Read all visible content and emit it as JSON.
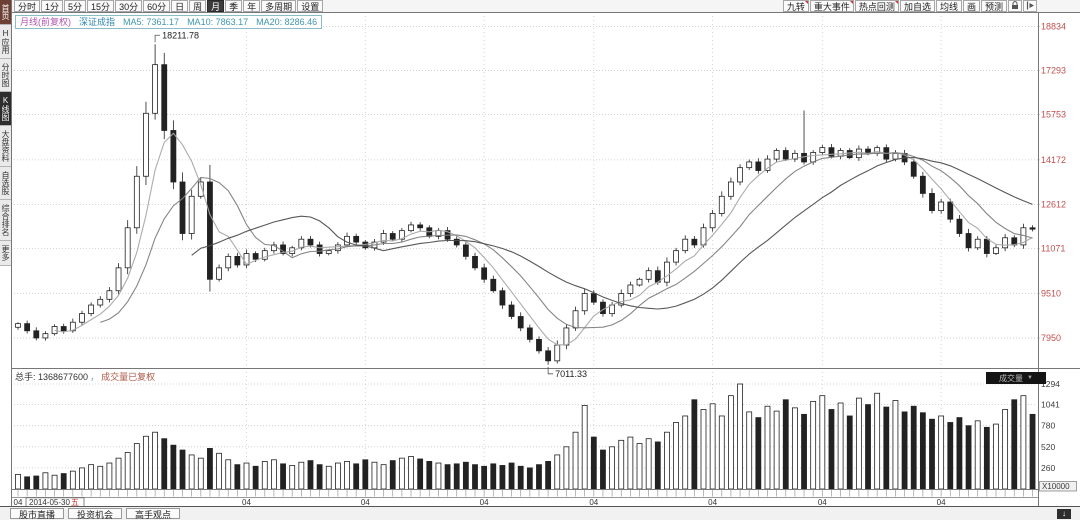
{
  "toolbar": {
    "periods": [
      {
        "label": "分时"
      },
      {
        "label": "1分"
      },
      {
        "label": "5分"
      },
      {
        "label": "15分"
      },
      {
        "label": "30分"
      },
      {
        "label": "60分"
      },
      {
        "label": "日"
      },
      {
        "label": "周"
      },
      {
        "label": "月"
      },
      {
        "label": "季"
      },
      {
        "label": "年"
      },
      {
        "label": "多周期"
      },
      {
        "label": "设置"
      }
    ],
    "right_buttons": [
      {
        "label": "九转"
      },
      {
        "label": "重大事件"
      },
      {
        "label": "热点回测"
      },
      {
        "label": "加自选"
      },
      {
        "label": "均线"
      },
      {
        "label": "画"
      },
      {
        "label": "预测"
      }
    ]
  },
  "sidebar": {
    "items": [
      {
        "label": "首页"
      },
      {
        "label": "H应用"
      },
      {
        "label": "分时图"
      },
      {
        "label": "K线图"
      },
      {
        "label": "大盘资料"
      },
      {
        "label": "自选股"
      },
      {
        "label": "综合排名"
      },
      {
        "label": "更多"
      }
    ]
  },
  "chart_header": {
    "period": "月线(前复权)",
    "symbol": "深证成指",
    "ma5": "MA5: 7361.17",
    "ma10": "MA10: 7863.17",
    "ma20": "MA20: 8286.46"
  },
  "volume_header": {
    "total": "总手: 1368677600",
    "separator": "，",
    "adjusted": "成交量已复权",
    "selector": "成交量"
  },
  "x_axis": {
    "year_label": "04",
    "date_box_date": "2014-05-30",
    "date_box_day": "五"
  },
  "bottom_tabs": [
    {
      "label": "股市直播"
    },
    {
      "label": "投资机会"
    },
    {
      "label": "高手观点"
    }
  ],
  "colors": {
    "up_fill": "#ffffff",
    "down_fill": "#222222",
    "outline": "#222222",
    "ma5": "#a8a8a8",
    "ma10": "#7f7f7f",
    "ma20": "#4f4f4f",
    "grid": "#c9c9c9",
    "axis_label": "#c05050",
    "vol_label": "#3c3c3c",
    "date_label": "#333333",
    "day_red": "#c23a2e"
  },
  "chart_data": {
    "type": "candlestick+volume",
    "title": "深证成指 月线(前复权)",
    "y_ticks": [
      18834,
      17293,
      15753,
      14172,
      12612,
      11071,
      9510,
      7950
    ],
    "price_range": [
      6900,
      19200
    ],
    "volume_ticks": [
      1294,
      1041,
      780,
      520,
      260
    ],
    "volume_unit": "X10000",
    "year_tick_indices": [
      0,
      25,
      38,
      51,
      63,
      76,
      88,
      101
    ],
    "closes": [
      8450,
      8200,
      7950,
      8100,
      8350,
      8200,
      8500,
      8800,
      9100,
      9300,
      9600,
      10400,
      11800,
      13600,
      15800,
      17500,
      15200,
      13400,
      11600,
      12900,
      13400,
      10000,
      10400,
      10800,
      10500,
      10900,
      10700,
      11000,
      11200,
      10900,
      11100,
      11400,
      11200,
      10900,
      11000,
      11200,
      11500,
      11300,
      11100,
      11300,
      11600,
      11400,
      11700,
      11900,
      11800,
      11500,
      11700,
      11400,
      11200,
      10800,
      10400,
      10000,
      9600,
      9100,
      8700,
      8300,
      7900,
      7500,
      7150,
      7700,
      8300,
      8900,
      9500,
      9200,
      8800,
      9100,
      9500,
      9800,
      10000,
      10300,
      9900,
      10600,
      11000,
      11400,
      11200,
      11800,
      12300,
      12900,
      13400,
      13900,
      14100,
      13800,
      14200,
      14500,
      14200,
      14400,
      14100,
      14430,
      14600,
      14300,
      14500,
      14250,
      14550,
      14400,
      14600,
      14200,
      14400,
      14100,
      13600,
      13000,
      12400,
      12700,
      12100,
      11600,
      11100,
      11400,
      10900,
      11100,
      11450,
      11200,
      11800,
      11750
    ],
    "volumes": [
      180,
      150,
      160,
      200,
      170,
      190,
      220,
      260,
      300,
      280,
      320,
      380,
      450,
      560,
      650,
      700,
      620,
      540,
      480,
      420,
      380,
      500,
      440,
      360,
      300,
      320,
      280,
      340,
      360,
      310,
      290,
      330,
      350,
      300,
      280,
      320,
      340,
      310,
      360,
      330,
      300,
      350,
      380,
      400,
      370,
      340,
      320,
      300,
      310,
      330,
      300,
      280,
      310,
      290,
      320,
      280,
      260,
      300,
      340,
      420,
      520,
      700,
      1030,
      640,
      480,
      520,
      600,
      640,
      560,
      620,
      580,
      700,
      820,
      900,
      1100,
      980,
      1050,
      900,
      1150,
      1294,
      950,
      880,
      1020,
      960,
      1100,
      1000,
      920,
      1080,
      1150,
      980,
      1060,
      900,
      1120,
      1040,
      1180,
      1010,
      1090,
      950,
      1020,
      940,
      860,
      900,
      820,
      880,
      780,
      840,
      760,
      800,
      980,
      1100,
      1150,
      920
    ],
    "ma_periods": [
      5,
      10,
      20
    ],
    "annotations": {
      "peak": {
        "index": 15,
        "high": 18211.78,
        "label": "18211.78"
      },
      "trough": {
        "index": 58,
        "low": 7011.33,
        "label": "7011.33"
      },
      "wick_spike": {
        "index": 86,
        "high": 15900
      }
    }
  }
}
